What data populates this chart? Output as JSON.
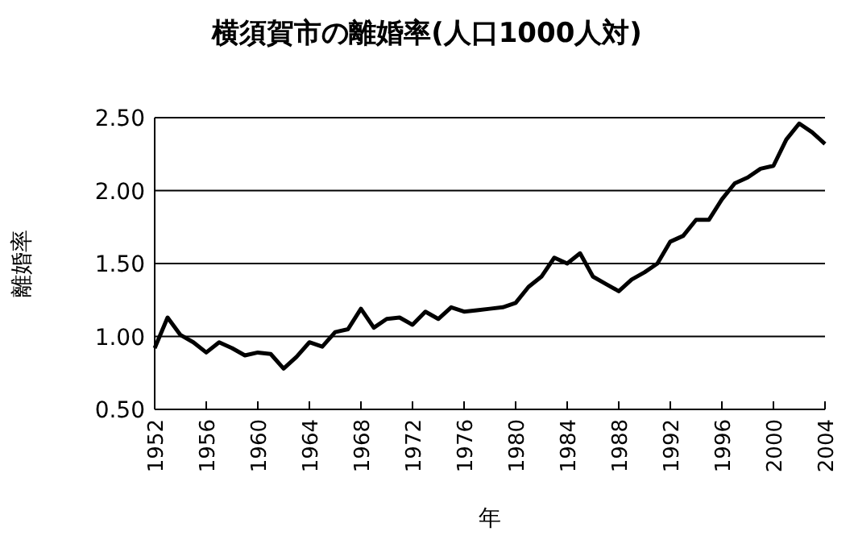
{
  "chart_data": {
    "type": "line",
    "title": "横須賀市の離婚率(人口1000人対)",
    "xlabel": "年",
    "ylabel": "離婚率",
    "x": [
      1952,
      1953,
      1954,
      1955,
      1956,
      1957,
      1958,
      1959,
      1960,
      1961,
      1962,
      1963,
      1964,
      1965,
      1966,
      1967,
      1968,
      1969,
      1970,
      1971,
      1972,
      1973,
      1974,
      1975,
      1976,
      1977,
      1978,
      1979,
      1980,
      1981,
      1982,
      1983,
      1984,
      1985,
      1986,
      1987,
      1988,
      1989,
      1990,
      1991,
      1992,
      1993,
      1994,
      1995,
      1996,
      1997,
      1998,
      1999,
      2000,
      2001,
      2002,
      2003,
      2004
    ],
    "series": [
      {
        "color": "#000000",
        "values": [
          0.92,
          1.13,
          1.01,
          0.96,
          0.89,
          0.96,
          0.92,
          0.87,
          0.89,
          0.88,
          0.78,
          0.86,
          0.96,
          0.93,
          1.03,
          1.05,
          1.19,
          1.06,
          1.12,
          1.13,
          1.08,
          1.17,
          1.12,
          1.2,
          1.17,
          1.18,
          1.19,
          1.2,
          1.23,
          1.34,
          1.41,
          1.54,
          1.5,
          1.57,
          1.41,
          1.36,
          1.31,
          1.39,
          1.44,
          1.5,
          1.65,
          1.69,
          1.8,
          1.8,
          1.94,
          2.05,
          2.09,
          2.15,
          2.17,
          2.35,
          2.46,
          2.4,
          2.32
        ]
      }
    ],
    "xlim": [
      1952,
      2004
    ],
    "xticks": [
      1952,
      1956,
      1960,
      1964,
      1968,
      1972,
      1976,
      1980,
      1984,
      1988,
      1992,
      1996,
      2000,
      2004
    ],
    "ylim": [
      0.5,
      2.5
    ],
    "yticks": [
      {
        "value": 0.5,
        "label": "0.50"
      },
      {
        "value": 1,
        "label": "1.00"
      },
      {
        "value": 1.5,
        "label": "1.50"
      },
      {
        "value": 2,
        "label": "2.00"
      },
      {
        "value": 2.5,
        "label": "2.50"
      }
    ],
    "grid": "y",
    "marker": "none",
    "line_style": "solid"
  }
}
